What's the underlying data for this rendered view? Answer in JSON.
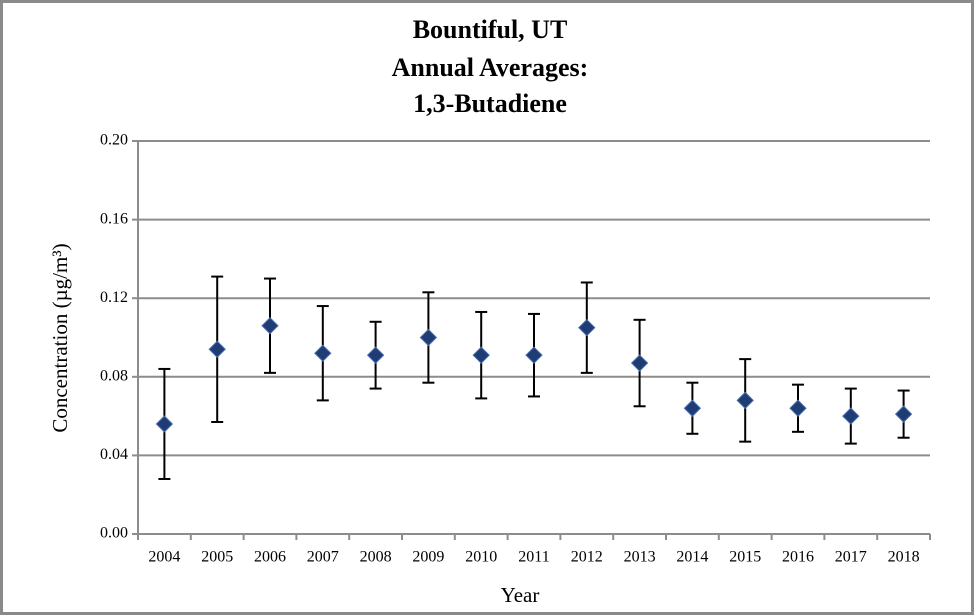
{
  "chart_data": {
    "type": "scatter",
    "title": [
      "Bountiful, UT",
      "Annual  Averages:",
      "1,3-Butadiene"
    ],
    "x_label": "Year",
    "y_label": "Concentration (µg/m³)",
    "categories": [
      "2004",
      "2005",
      "2006",
      "2007",
      "2008",
      "2009",
      "2010",
      "2011",
      "2012",
      "2013",
      "2014",
      "2015",
      "2016",
      "2017",
      "2018"
    ],
    "values": [
      0.056,
      0.094,
      0.106,
      0.092,
      0.091,
      0.1,
      0.091,
      0.091,
      0.105,
      0.087,
      0.064,
      0.068,
      0.064,
      0.06,
      0.061
    ],
    "errors": [
      0.028,
      0.037,
      0.024,
      0.024,
      0.017,
      0.023,
      0.022,
      0.021,
      0.023,
      0.022,
      0.013,
      0.021,
      0.012,
      0.014,
      0.012
    ],
    "color": "#1f3c74",
    "error_color": "#000000",
    "ylim": [
      0,
      0.2
    ],
    "yticks": [
      {
        "value": 0,
        "label": "0.00"
      },
      0.04,
      0.08,
      0.12,
      0.16,
      {
        "value": 0.2,
        "label": "0.20"
      }
    ],
    "grid": true
  }
}
